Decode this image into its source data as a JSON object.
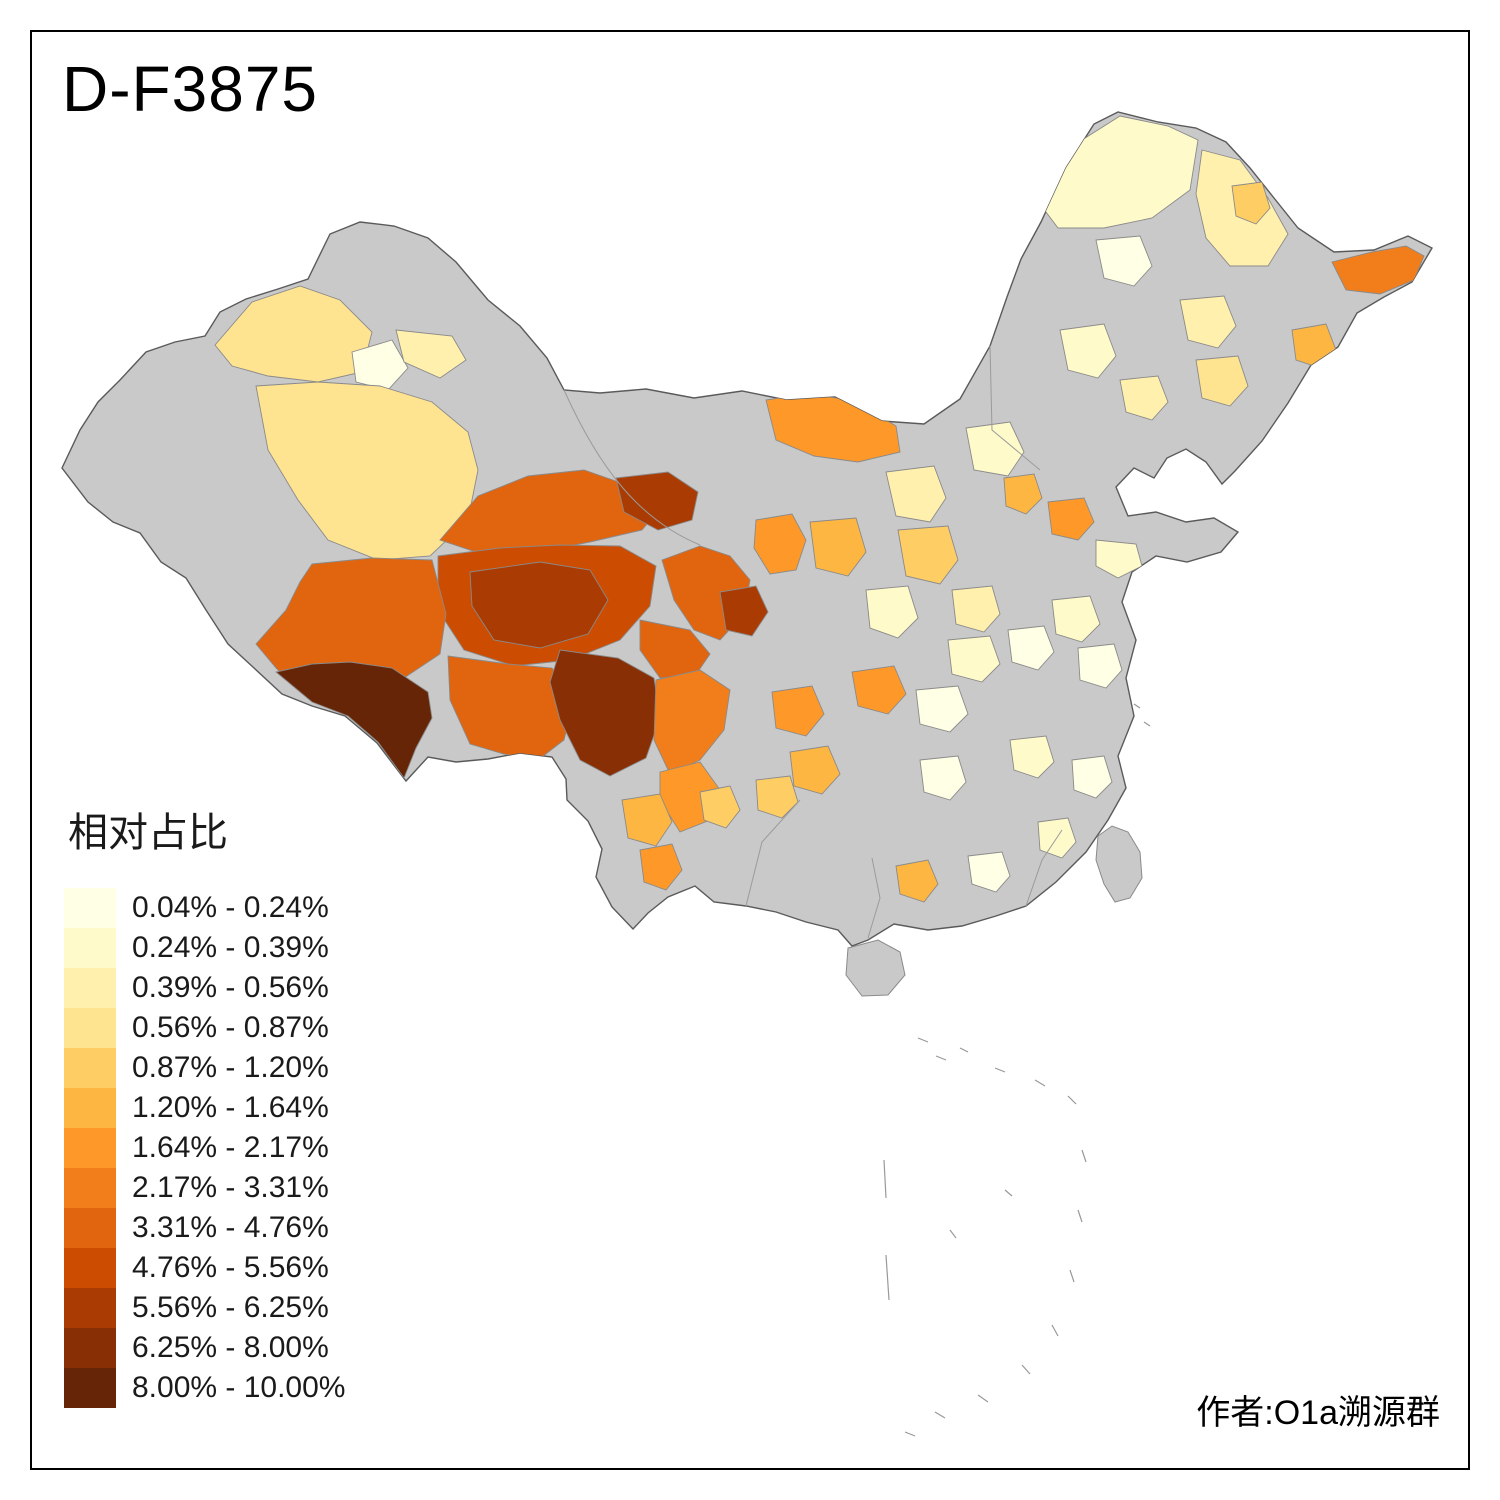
{
  "title": "D-F3875",
  "legend": {
    "title": "相对占比",
    "classes": [
      {
        "range": "0.04% - 0.24%",
        "color": "#FFFFE5"
      },
      {
        "range": "0.24% - 0.39%",
        "color": "#FFFACA"
      },
      {
        "range": "0.39% - 0.56%",
        "color": "#FFF0AE"
      },
      {
        "range": "0.56% - 0.87%",
        "color": "#FEE391"
      },
      {
        "range": "0.87% - 1.20%",
        "color": "#FECE65"
      },
      {
        "range": "1.20% - 1.64%",
        "color": "#FEB642"
      },
      {
        "range": "1.64% - 2.17%",
        "color": "#FE9929"
      },
      {
        "range": "2.17% - 3.31%",
        "color": "#F27E1B"
      },
      {
        "range": "3.31% - 4.76%",
        "color": "#E1640E"
      },
      {
        "range": "4.76% - 5.56%",
        "color": "#CC4C02"
      },
      {
        "range": "5.56% - 6.25%",
        "color": "#AA3C03"
      },
      {
        "range": "6.25% - 8.00%",
        "color": "#882F05"
      },
      {
        "range": "8.00% - 10.00%",
        "color": "#662506"
      }
    ],
    "no_data_color": "#C9C9C9",
    "outline_color": "#5A5A5A"
  },
  "credit": "作者:O1a溯源群"
}
